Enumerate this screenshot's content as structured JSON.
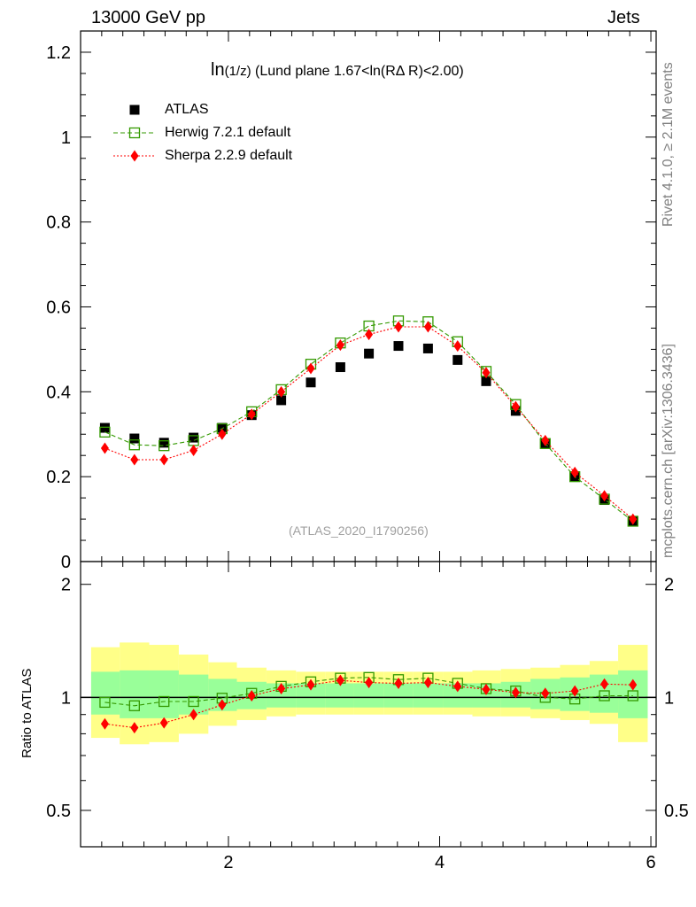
{
  "header": {
    "left": "13000 GeV pp",
    "right": "Jets"
  },
  "side_labels": {
    "rivet": "Rivet 4.1.0, ≥ 2.1M events",
    "mcplots": "mcplots.cern.ch [arXiv:1306.3436]"
  },
  "chart_data": {
    "type": "scatter",
    "title_main": "ln",
    "title_sub": "(1/z)",
    "title_rest": " (Lund plane 1.67<ln(RΔ R)<2.00)",
    "watermark": "(ATLAS_2020_I1790256)",
    "xlim": [
      0.6,
      6.05
    ],
    "ylim": [
      0,
      1.25
    ],
    "ratio_ylim": [
      0.4,
      2.3
    ],
    "xticks": [
      2,
      4,
      6
    ],
    "yticks": [
      0,
      0.2,
      0.4,
      0.6,
      0.8,
      1,
      1.2
    ],
    "ytick_labels": [
      "0",
      "0.2",
      "0.4",
      "0.6",
      "0.8",
      "1",
      "1.2"
    ],
    "ratio_yticks": [
      0.5,
      1,
      2
    ],
    "ratio_ytick_labels": [
      "0.5",
      "1",
      "2"
    ],
    "ratio_ylabel": "Ratio to ATLAS",
    "x": [
      0.83,
      1.11,
      1.39,
      1.67,
      1.94,
      2.22,
      2.5,
      2.78,
      3.06,
      3.33,
      3.61,
      3.89,
      4.17,
      4.44,
      4.72,
      5.0,
      5.28,
      5.56,
      5.83
    ],
    "bin_edges": [
      0.7,
      0.97,
      1.25,
      1.53,
      1.81,
      2.08,
      2.36,
      2.64,
      2.92,
      3.19,
      3.47,
      3.75,
      4.03,
      4.31,
      4.58,
      4.86,
      5.14,
      5.42,
      5.69,
      5.97
    ],
    "band_yellow": [
      [
        0.78,
        1.36
      ],
      [
        0.75,
        1.4
      ],
      [
        0.76,
        1.38
      ],
      [
        0.8,
        1.3
      ],
      [
        0.84,
        1.24
      ],
      [
        0.87,
        1.2
      ],
      [
        0.89,
        1.18
      ],
      [
        0.9,
        1.17
      ],
      [
        0.9,
        1.17
      ],
      [
        0.9,
        1.17
      ],
      [
        0.9,
        1.17
      ],
      [
        0.9,
        1.17
      ],
      [
        0.9,
        1.17
      ],
      [
        0.89,
        1.18
      ],
      [
        0.89,
        1.19
      ],
      [
        0.88,
        1.2
      ],
      [
        0.87,
        1.22
      ],
      [
        0.85,
        1.25
      ],
      [
        0.76,
        1.38
      ]
    ],
    "band_green": [
      [
        0.9,
        1.17
      ],
      [
        0.88,
        1.18
      ],
      [
        0.88,
        1.18
      ],
      [
        0.9,
        1.15
      ],
      [
        0.92,
        1.12
      ],
      [
        0.93,
        1.1
      ],
      [
        0.94,
        1.09
      ],
      [
        0.94,
        1.09
      ],
      [
        0.94,
        1.09
      ],
      [
        0.94,
        1.09
      ],
      [
        0.94,
        1.09
      ],
      [
        0.94,
        1.09
      ],
      [
        0.94,
        1.09
      ],
      [
        0.94,
        1.09
      ],
      [
        0.94,
        1.1
      ],
      [
        0.93,
        1.12
      ],
      [
        0.92,
        1.13
      ],
      [
        0.91,
        1.15
      ],
      [
        0.88,
        1.18
      ]
    ],
    "series": [
      {
        "name": "ATLAS",
        "color": "#000000",
        "marker": "square-filled",
        "values": [
          0.315,
          0.29,
          0.28,
          0.292,
          0.315,
          0.345,
          0.38,
          0.422,
          0.458,
          0.49,
          0.508,
          0.502,
          0.475,
          0.425,
          0.355,
          0.278,
          0.2,
          0.145,
          0.095
        ],
        "ratio": [
          1,
          1,
          1,
          1,
          1,
          1,
          1,
          1,
          1,
          1,
          1,
          1,
          1,
          1,
          1,
          1,
          1,
          1,
          1
        ]
      },
      {
        "name": "Herwig 7.2.1 default",
        "color": "#339900",
        "marker": "square-open",
        "line": "dashed",
        "values": [
          0.305,
          0.275,
          0.273,
          0.285,
          0.313,
          0.353,
          0.405,
          0.465,
          0.515,
          0.555,
          0.567,
          0.565,
          0.518,
          0.448,
          0.37,
          0.278,
          0.2,
          0.147,
          0.095
        ],
        "ratio": [
          0.97,
          0.95,
          0.975,
          0.975,
          0.995,
          1.025,
          1.07,
          1.1,
          1.125,
          1.13,
          1.115,
          1.125,
          1.09,
          1.055,
          1.04,
          1.0,
          0.99,
          1.01,
          1.01
        ]
      },
      {
        "name": "Sherpa 2.2.9 default",
        "color": "#ff0000",
        "marker": "diamond",
        "line": "dotted",
        "values": [
          0.267,
          0.24,
          0.24,
          0.262,
          0.3,
          0.347,
          0.4,
          0.455,
          0.51,
          0.535,
          0.553,
          0.553,
          0.508,
          0.445,
          0.365,
          0.285,
          0.21,
          0.155,
          0.1
        ],
        "ratio": [
          0.85,
          0.83,
          0.855,
          0.9,
          0.955,
          1.01,
          1.055,
          1.08,
          1.11,
          1.095,
          1.09,
          1.095,
          1.07,
          1.05,
          1.03,
          1.025,
          1.04,
          1.085,
          1.08
        ]
      }
    ]
  }
}
